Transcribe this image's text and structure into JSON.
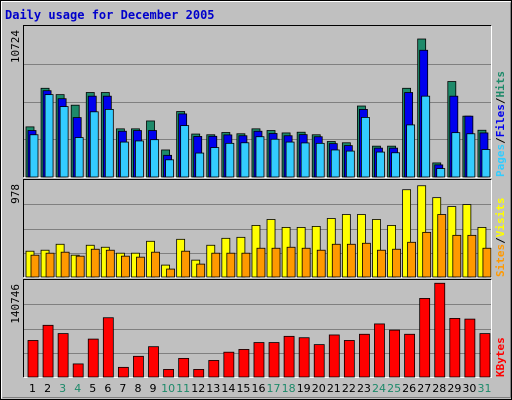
{
  "chart_data": {
    "type": "bar",
    "title": "Daily usage for December 2005",
    "days": [
      "1",
      "2",
      "3",
      "4",
      "5",
      "6",
      "7",
      "8",
      "9",
      "10",
      "11",
      "12",
      "13",
      "14",
      "15",
      "16",
      "17",
      "18",
      "19",
      "20",
      "21",
      "22",
      "23",
      "24",
      "25",
      "26",
      "27",
      "28",
      "29",
      "30",
      "31"
    ],
    "weekend_days": [
      "3",
      "4",
      "10",
      "11",
      "17",
      "18",
      "24",
      "25",
      "31"
    ],
    "panels": [
      {
        "ymax": 10724,
        "ymax_label": "10724",
        "legend": [
          "Pages",
          "Files",
          "Hits"
        ],
        "series": [
          {
            "name": "Hits",
            "color": "#1e8a6a",
            "values": [
              3560,
              6300,
              5850,
              5100,
              6000,
              6000,
              3420,
              3420,
              3980,
              1920,
              4650,
              3050,
              3000,
              3160,
              3070,
              3420,
              3300,
              3130,
              3180,
              3000,
              2520,
              2430,
              5040,
              2190,
              2190,
              6300,
              9800,
              1000,
              6780,
              4320,
              3320
            ]
          },
          {
            "name": "Files",
            "color": "#0000ee",
            "values": [
              3300,
              6130,
              5560,
              4220,
              5740,
              5740,
              3250,
              3300,
              3300,
              1540,
              4480,
              2880,
              2890,
              2990,
              2930,
              3250,
              3090,
              2930,
              3010,
              2860,
              2370,
              2230,
              4800,
              2050,
              2050,
              6000,
              9000,
              860,
              5740,
              4320,
              3130
            ]
          },
          {
            "name": "Pages",
            "color": "#33ccff",
            "values": [
              3000,
              5850,
              5000,
              2800,
              4630,
              4800,
              2480,
              2560,
              2650,
              1220,
              3650,
              1700,
              2090,
              2390,
              2430,
              2860,
              2680,
              2480,
              2420,
              2390,
              1920,
              1840,
              4230,
              1770,
              1720,
              3700,
              5740,
              600,
              3150,
              3070,
              1950
            ]
          }
        ]
      },
      {
        "ymax": 978,
        "ymax_label": "978",
        "legend": [
          "Sites",
          "Visits"
        ],
        "series": [
          {
            "name": "Visits",
            "color": "#ffff00",
            "values": [
              260,
              270,
              330,
              220,
              320,
              300,
              240,
              240,
              360,
              120,
              380,
              170,
              320,
              390,
              400,
              520,
              580,
              500,
              500,
              510,
              590,
              630,
              630,
              580,
              520,
              880,
              920,
              800,
              710,
              730,
              500
            ]
          },
          {
            "name": "Sites",
            "color": "#ff9900",
            "values": [
              220,
              240,
              250,
              210,
              280,
              270,
              210,
              200,
              250,
              80,
              260,
              130,
              240,
              240,
              240,
              290,
              290,
              300,
              290,
              270,
              330,
              330,
              340,
              270,
              280,
              350,
              450,
              630,
              420,
              420,
              290
            ]
          }
        ]
      },
      {
        "ymax": 140746,
        "ymax_label": "140746",
        "legend": [
          "KBytes"
        ],
        "series": [
          {
            "name": "KBytes",
            "color": "#ff0000",
            "values": [
              53000,
              75000,
              63000,
              19000,
              55000,
              86000,
              14000,
              30000,
              44000,
              11000,
              27000,
              11000,
              24000,
              36000,
              40000,
              50000,
              50000,
              59000,
              57000,
              47000,
              61000,
              53000,
              62000,
              77000,
              68000,
              62000,
              114000,
              136000,
              85000,
              84000,
              63000
            ]
          }
        ]
      }
    ]
  }
}
